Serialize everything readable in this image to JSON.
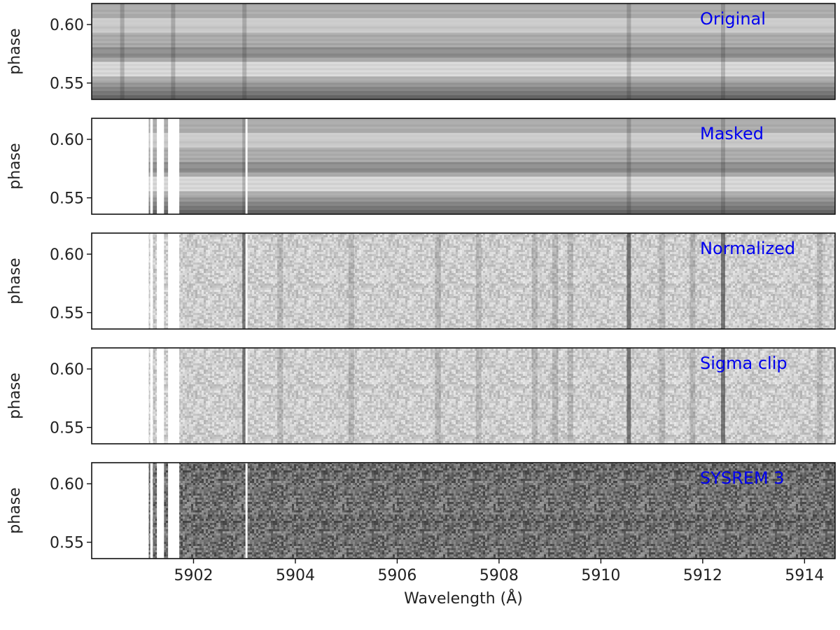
{
  "chart_data": {
    "type": "heatmap",
    "xlabel": "Wavelength (Å)",
    "ylabel": "phase",
    "xlim": [
      5900.0,
      5914.6
    ],
    "ylim": [
      0.536,
      0.618
    ],
    "x_ticks": [
      5902,
      5904,
      5906,
      5908,
      5910,
      5912,
      5914
    ],
    "x_tick_labels": [
      "5902",
      "5904",
      "5906",
      "5908",
      "5910",
      "5912",
      "5914"
    ],
    "y_ticks": [
      0.55,
      0.6
    ],
    "y_tick_labels": [
      "0.55",
      "0.60"
    ],
    "colormap": "grayscale",
    "label_color": "#0000ee",
    "masked_ranges": [
      [
        5901.15,
        5901.2
      ],
      [
        5901.28,
        5901.42
      ],
      [
        5901.5,
        5901.72
      ],
      [
        5903.02,
        5903.06
      ]
    ],
    "mask_region": [
      5900.0,
      5901.12
    ],
    "absorption_lines_original": [
      5900.6,
      5901.6,
      5903.0,
      5910.55,
      5912.4
    ],
    "absorption_lines_normalized": [
      5903.0,
      5903.7,
      5905.1,
      5906.8,
      5907.6,
      5908.7,
      5909.1,
      5909.4,
      5910.55,
      5911.2,
      5911.8,
      5912.4,
      5914.3
    ],
    "panels": [
      {
        "label": "Original",
        "style": "original"
      },
      {
        "label": "Masked",
        "style": "masked"
      },
      {
        "label": "Normalized",
        "style": "normalized"
      },
      {
        "label": "Sigma clip",
        "style": "sigma"
      },
      {
        "label": "SYSREM 3",
        "style": "sysrem"
      }
    ]
  }
}
